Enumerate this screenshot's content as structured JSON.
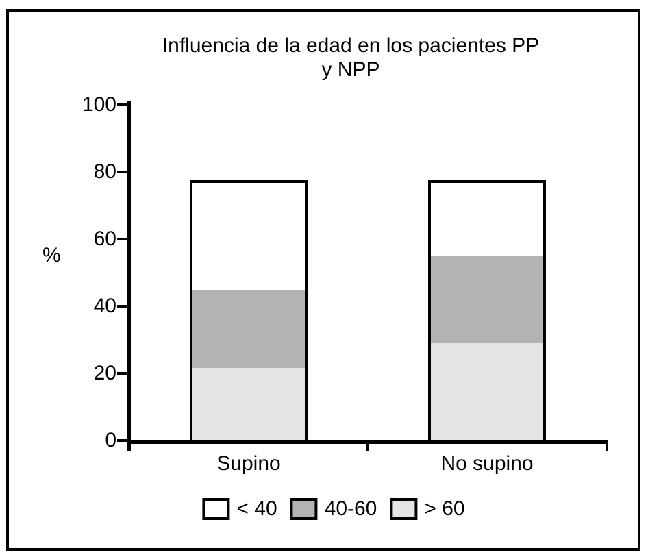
{
  "chart_data": {
    "type": "bar",
    "stacked": true,
    "title_line1": "Influencia de la edad en los pacientes PP",
    "title_line2": "y NPP",
    "xlabel": "",
    "ylabel": "%",
    "ylim": [
      0,
      100
    ],
    "yticks": [
      0,
      20,
      40,
      60,
      80,
      100
    ],
    "categories": [
      "Supino",
      "No supino"
    ],
    "series": [
      {
        "name": "> 60",
        "color": "#e4e4e4",
        "values": [
          21.7,
          29.0
        ]
      },
      {
        "name": "40-60",
        "color": "#b3b3b3",
        "values": [
          23.3,
          26.0
        ]
      },
      {
        "name": "< 40",
        "color": "#ffffff",
        "values": [
          32.5,
          22.5
        ]
      }
    ],
    "stack_order": "bottom-to-top",
    "bar_totals": [
      77.5,
      77.5
    ],
    "grid": false,
    "legend": {
      "position": "bottom",
      "entries": [
        {
          "label": "< 40",
          "color": "#ffffff"
        },
        {
          "label": "40-60",
          "color": "#b3b3b3"
        },
        {
          "label": "> 60",
          "color": "#e4e4e4"
        }
      ]
    }
  },
  "colors": {
    "axis": "#000000",
    "frame": "#000000",
    "background": "#ffffff"
  }
}
